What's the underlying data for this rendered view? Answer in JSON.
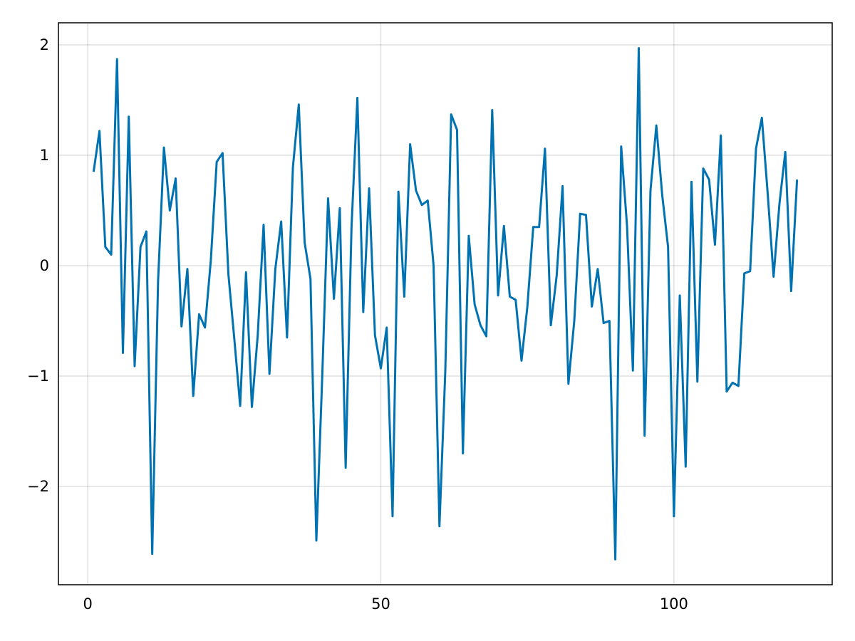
{
  "chart_data": {
    "type": "line",
    "x": [
      1,
      2,
      3,
      4,
      5,
      6,
      7,
      8,
      9,
      10,
      11,
      12,
      13,
      14,
      15,
      16,
      17,
      18,
      19,
      20,
      21,
      22,
      23,
      24,
      25,
      26,
      27,
      28,
      29,
      30,
      31,
      32,
      33,
      34,
      35,
      36,
      37,
      38,
      39,
      40,
      41,
      42,
      43,
      44,
      45,
      46,
      47,
      48,
      49,
      50,
      51,
      52,
      53,
      54,
      55,
      56,
      57,
      58,
      59,
      60,
      61,
      62,
      63,
      64,
      65,
      66,
      67,
      68,
      69,
      70,
      71,
      72,
      73,
      74,
      75,
      76,
      77,
      78,
      79,
      80,
      81,
      82,
      83,
      84,
      85,
      86,
      87,
      88,
      89,
      90,
      91,
      92,
      93,
      94,
      95,
      96,
      97,
      98,
      99,
      100,
      101,
      102,
      103,
      104,
      105,
      106,
      107,
      108,
      109,
      110,
      111,
      112,
      113,
      114,
      115,
      116,
      117,
      118,
      119,
      120,
      121
    ],
    "values": [
      0.85,
      1.22,
      0.17,
      0.1,
      1.87,
      -0.79,
      1.35,
      -0.91,
      0.17,
      0.31,
      -2.61,
      -0.14,
      1.07,
      0.5,
      0.79,
      -0.55,
      -0.03,
      -1.18,
      -0.44,
      -0.56,
      0.05,
      0.94,
      1.02,
      -0.08,
      -0.66,
      -1.27,
      -0.06,
      -1.28,
      -0.63,
      0.37,
      -0.98,
      -0.03,
      0.4,
      -0.65,
      0.89,
      1.46,
      0.21,
      -0.12,
      -2.49,
      -1.01,
      0.61,
      -0.3,
      0.52,
      -1.83,
      0.35,
      1.52,
      -0.42,
      0.7,
      -0.63,
      -0.93,
      -0.56,
      -2.27,
      0.67,
      -0.28,
      1.1,
      0.68,
      0.55,
      0.59,
      0.0,
      -2.36,
      -0.95,
      1.37,
      1.23,
      -1.7,
      0.27,
      -0.35,
      -0.54,
      -0.64,
      1.41,
      -0.27,
      0.36,
      -0.28,
      -0.31,
      -0.86,
      -0.37,
      0.35,
      0.35,
      1.06,
      -0.54,
      -0.09,
      0.72,
      -1.07,
      -0.5,
      0.47,
      0.46,
      -0.37,
      -0.03,
      -0.52,
      -0.5,
      -2.66,
      1.08,
      0.36,
      -0.95,
      1.97,
      -1.54,
      0.68,
      1.27,
      0.64,
      0.17,
      -2.27,
      -0.27,
      -1.82,
      0.76,
      -1.05,
      0.88,
      0.78,
      0.19,
      1.18,
      -1.14,
      -1.06,
      -1.09,
      -0.07,
      -0.05,
      1.06,
      1.34,
      0.65,
      -0.1,
      0.56,
      1.03,
      -0.23,
      0.78
    ],
    "color": "#0072b2",
    "xlim": [
      -5,
      127
    ],
    "xticks": [
      0,
      50,
      100
    ],
    "ylim": [
      -2.89,
      2.2
    ],
    "yticks": [
      {
        "value": -2,
        "label": "−2"
      },
      {
        "value": -1,
        "label": "−1"
      },
      0,
      1,
      2
    ],
    "grid": true
  }
}
